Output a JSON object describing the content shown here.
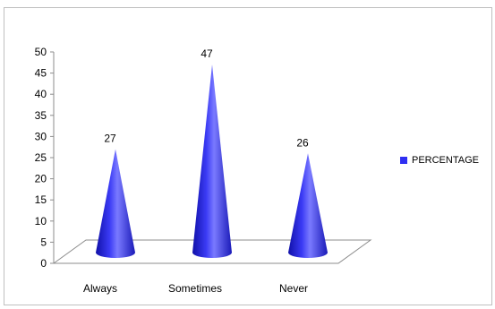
{
  "chart_data": {
    "type": "bar",
    "style": "3d-cone",
    "categories": [
      "Always",
      "Sometimes",
      "Never"
    ],
    "series": [
      {
        "name": "PERCENTAGE",
        "values": [
          27,
          47,
          26
        ]
      }
    ],
    "data_labels": [
      "27",
      "47",
      "26"
    ],
    "ylim": [
      0,
      50
    ],
    "yticks": [
      "0",
      "5",
      "10",
      "15",
      "20",
      "25",
      "30",
      "35",
      "40",
      "45",
      "50"
    ],
    "legend": "right",
    "grid": false,
    "colors": {
      "series": "#2f2ff2",
      "series_dark": "#1010a8",
      "series_light": "#7a7aff"
    }
  }
}
